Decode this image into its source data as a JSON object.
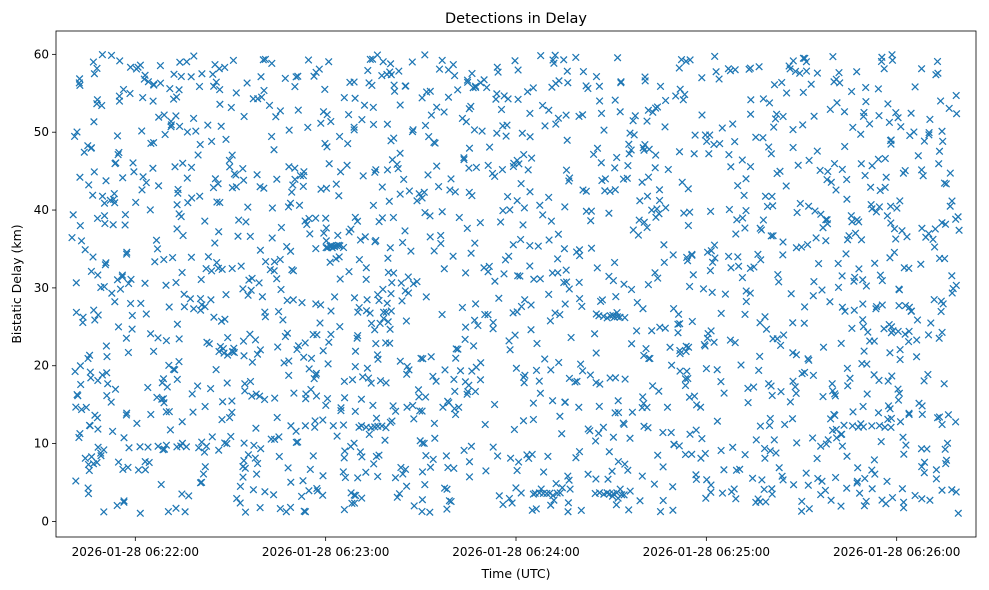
{
  "chart_data": {
    "type": "scatter",
    "title": "Detections in Delay",
    "xlabel": "Time (UTC)",
    "ylabel": "Bistatic Delay (km)",
    "marker": "x",
    "marker_color": "#1f77b4",
    "grid": false,
    "legend": "none",
    "x_range": [
      "2026-01-28 06:21:35",
      "2026-01-28 06:26:25"
    ],
    "ylim": [
      -2,
      63
    ],
    "x_ticks": [
      "2026-01-28 06:22:00",
      "2026-01-28 06:23:00",
      "2026-01-28 06:24:00",
      "2026-01-28 06:25:00",
      "2026-01-28 06:26:00"
    ],
    "y_ticks": [
      0,
      10,
      20,
      30,
      40,
      50,
      60
    ],
    "series": [
      {
        "x_start": "2026-01-28 06:21:40",
        "x_end": "2026-01-28 06:26:20",
        "n_points": 1800,
        "y_min": 1,
        "y_max": 60,
        "bands": [
          {
            "y": 9.6,
            "from": "2026-01-28 06:22:00",
            "to": "2026-01-28 06:22:25"
          },
          {
            "y": 35.3,
            "from": "2026-01-28 06:23:00",
            "to": "2026-01-28 06:23:05"
          },
          {
            "y": 12.2,
            "from": "2026-01-28 06:23:10",
            "to": "2026-01-28 06:23:20"
          },
          {
            "y": 3.5,
            "from": "2026-01-28 06:24:06",
            "to": "2026-01-28 06:24:15"
          },
          {
            "y": 26.3,
            "from": "2026-01-28 06:24:26",
            "to": "2026-01-28 06:24:35"
          },
          {
            "y": 3.5,
            "from": "2026-01-28 06:24:26",
            "to": "2026-01-28 06:24:35"
          },
          {
            "y": 12.2,
            "from": "2026-01-28 06:25:43",
            "to": "2026-01-28 06:26:00"
          }
        ]
      }
    ]
  }
}
